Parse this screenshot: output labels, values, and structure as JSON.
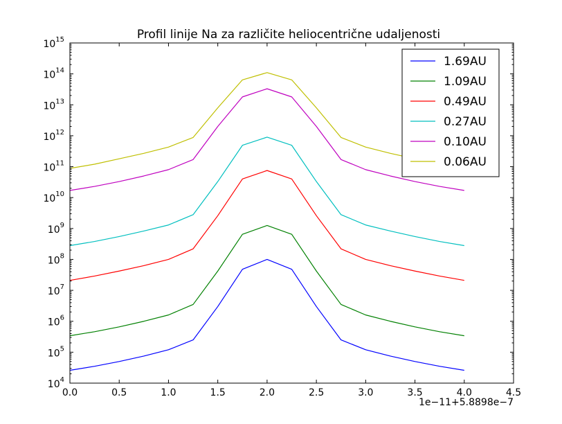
{
  "chart_data": {
    "type": "line",
    "title": "Profil linije Na za različite heliocentrične udaljenosti",
    "xlabel": "",
    "ylabel": "",
    "x_offset_label": "1e−11+5.8898e−7",
    "xlim": [
      0.0,
      4.5
    ],
    "ylim_log10": [
      4,
      15
    ],
    "yscale": "log",
    "grid": false,
    "legend_position": "top-right",
    "x_ticks": [
      "0.0",
      "0.5",
      "1.0",
      "1.5",
      "2.0",
      "2.5",
      "3.0",
      "3.5",
      "4.0",
      "4.5"
    ],
    "y_ticks": [
      {
        "base": "10",
        "exp": "4"
      },
      {
        "base": "10",
        "exp": "5"
      },
      {
        "base": "10",
        "exp": "6"
      },
      {
        "base": "10",
        "exp": "7"
      },
      {
        "base": "10",
        "exp": "8"
      },
      {
        "base": "10",
        "exp": "9"
      },
      {
        "base": "10",
        "exp": "10"
      },
      {
        "base": "10",
        "exp": "11"
      },
      {
        "base": "10",
        "exp": "12"
      },
      {
        "base": "10",
        "exp": "13"
      },
      {
        "base": "10",
        "exp": "14"
      },
      {
        "base": "10",
        "exp": "15"
      }
    ],
    "x": [
      0.0,
      0.25,
      0.5,
      0.75,
      1.0,
      1.25,
      1.5,
      1.75,
      2.0,
      2.25,
      2.5,
      2.75,
      3.0,
      3.25,
      3.5,
      3.75,
      4.0
    ],
    "series": [
      {
        "name": "1.69AU",
        "color": "#0000ff",
        "values": [
          26000.0,
          35000.0,
          50000.0,
          75000.0,
          120000.0,
          250000.0,
          3000000.0,
          48000000.0,
          100000000.0,
          48000000.0,
          3000000.0,
          250000.0,
          120000.0,
          75000.0,
          50000.0,
          35000.0,
          26000.0
        ]
      },
      {
        "name": "1.09AU",
        "color": "#008000",
        "values": [
          340000.0,
          460000.0,
          660000.0,
          1000000.0,
          1600000.0,
          3500000.0,
          42000000.0,
          650000000.0,
          1250000000.0,
          650000000.0,
          42000000.0,
          3500000.0,
          1600000.0,
          1000000.0,
          660000.0,
          460000.0,
          340000.0
        ]
      },
      {
        "name": "0.49AU",
        "color": "#ff0000",
        "values": [
          21000000.0,
          29000000.0,
          42000000.0,
          63000000.0,
          100000000.0,
          220000000.0,
          2600000000.0,
          40000000000.0,
          75000000000.0,
          40000000000.0,
          2600000000.0,
          220000000.0,
          100000000.0,
          63000000.0,
          42000000.0,
          29000000.0,
          21000000.0
        ]
      },
      {
        "name": "0.27AU",
        "color": "#00bfbf",
        "values": [
          280000000.0,
          380000000.0,
          550000000.0,
          830000000.0,
          1300000000.0,
          2800000000.0,
          33000000000.0,
          490000000000.0,
          900000000000.0,
          490000000000.0,
          33000000000.0,
          2800000000.0,
          1300000000.0,
          830000000.0,
          550000000.0,
          380000000.0,
          280000000.0
        ]
      },
      {
        "name": "0.10AU",
        "color": "#bf00bf",
        "values": [
          17000000000.0,
          23000000000.0,
          33000000000.0,
          50000000000.0,
          80000000000.0,
          170000000000.0,
          2000000000000.0,
          18000000000000.0,
          33000000000000.0,
          18000000000000.0,
          2000000000000.0,
          170000000000.0,
          80000000000.0,
          50000000000.0,
          33000000000.0,
          23000000000.0,
          17000000000.0
        ]
      },
      {
        "name": "0.06AU",
        "color": "#bfbf00",
        "values": [
          88000000000.0,
          120000000000.0,
          180000000000.0,
          270000000000.0,
          430000000000.0,
          880000000000.0,
          8000000000000.0,
          64000000000000.0,
          110000000000000.0,
          64000000000000.0,
          8000000000000.0,
          880000000000.0,
          430000000000.0,
          270000000000.0,
          180000000000.0,
          120000000000.0,
          88000000000.0
        ]
      }
    ]
  }
}
